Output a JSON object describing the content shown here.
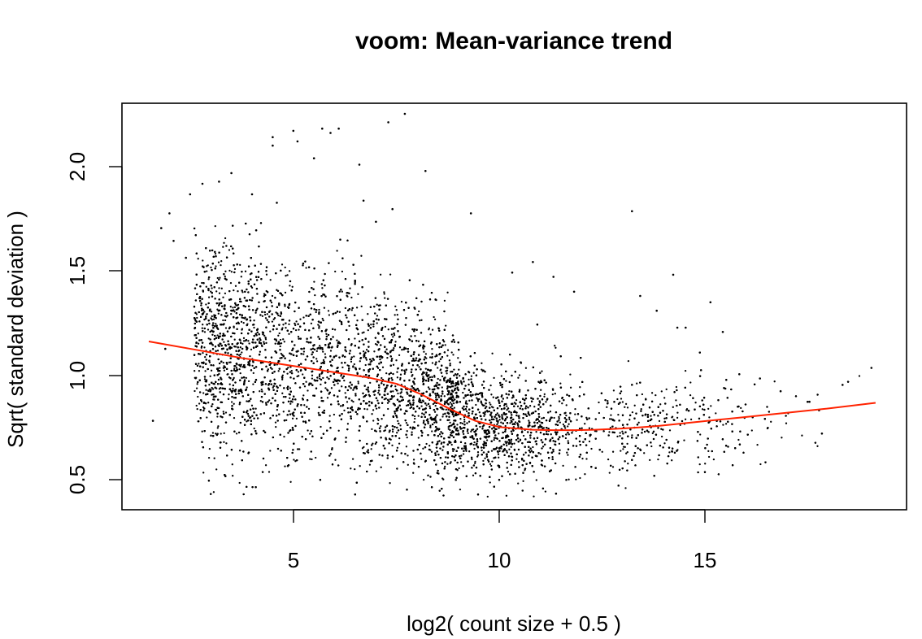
{
  "chart_data": {
    "type": "scatter",
    "title": "voom: Mean-variance trend",
    "xlabel": "log2( count size + 0.5 )",
    "ylabel": "Sqrt( standard deviation )",
    "xlim": [
      1.05,
      20.05
    ],
    "ylim": [
      0.36,
      2.28
    ],
    "x_ticks": [
      5,
      10,
      15
    ],
    "x_tick_labels": [
      "5",
      "10",
      "15"
    ],
    "y_ticks": [
      0.5,
      1.0,
      1.5,
      2.0
    ],
    "y_tick_labels": [
      "0.5",
      "1.0",
      "1.5",
      "2.0"
    ],
    "grid": false,
    "point_color": "#000000",
    "approx_point_count": 15000,
    "series": [
      {
        "kind": "points",
        "color": "#000000",
        "x": [
          1.8,
          2.0,
          2.1,
          2.2,
          2.3,
          2.6,
          2.7,
          3.0,
          3.4,
          3.7,
          4.2,
          4.3,
          4.7,
          4.7,
          4.8,
          5.2,
          5.3,
          5.7,
          5.9,
          6.1,
          6.3,
          6.8,
          6.9,
          7.2,
          7.5,
          7.6,
          7.9,
          8.4,
          9.5,
          10.5,
          11.0,
          11.5,
          12.0,
          13.4,
          13.6,
          14.0,
          14.4,
          14.5,
          14.7,
          15.3,
          15.6,
          16.0,
          16.5,
          17.0,
          17.7,
          18.0,
          18.5,
          19.2
        ],
        "y": [
          0.78,
          1.69,
          1.12,
          1.76,
          1.63,
          1.55,
          1.85,
          1.9,
          1.91,
          1.95,
          1.85,
          1.68,
          2.08,
          2.12,
          1.81,
          2.15,
          2.1,
          2.02,
          2.16,
          2.14,
          2.16,
          1.99,
          1.82,
          1.72,
          2.19,
          1.78,
          2.23,
          1.96,
          1.76,
          1.48,
          1.53,
          1.46,
          1.39,
          1.77,
          1.37,
          1.3,
          1.47,
          1.22,
          1.22,
          1.34,
          1.2,
          1.0,
          0.98,
          0.92,
          0.87,
          0.72,
          0.95,
          1.03
        ]
      },
      {
        "kind": "trend-line",
        "color": "#ff2200",
        "x": [
          1.7,
          3.0,
          4.0,
          5.0,
          6.0,
          7.0,
          7.7,
          8.3,
          9.0,
          9.6,
          10.2,
          11.0,
          11.5,
          12.0,
          12.5,
          13.0,
          13.5,
          14.0,
          14.5,
          15.0,
          16.0,
          17.0,
          18.0,
          19.3
        ],
        "y": [
          1.155,
          1.11,
          1.075,
          1.045,
          1.015,
          0.985,
          0.955,
          0.905,
          0.835,
          0.78,
          0.75,
          0.738,
          0.736,
          0.736,
          0.738,
          0.742,
          0.748,
          0.755,
          0.765,
          0.775,
          0.795,
          0.815,
          0.835,
          0.865
        ]
      }
    ]
  }
}
